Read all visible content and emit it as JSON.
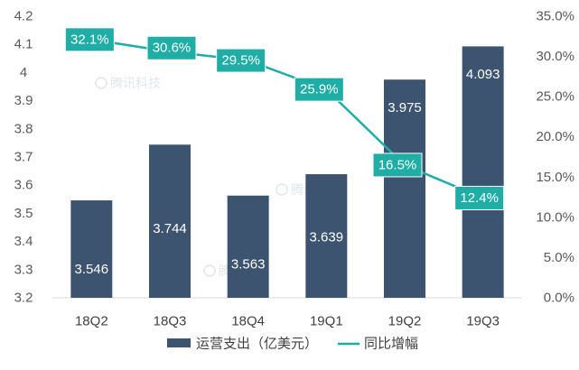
{
  "chart_data": {
    "type": "bar",
    "categories": [
      "18Q2",
      "18Q3",
      "18Q4",
      "19Q1",
      "19Q2",
      "19Q3"
    ],
    "series": [
      {
        "name": "运营支出（亿美元）",
        "type": "bar",
        "axis": "left",
        "values": [
          3.546,
          3.744,
          3.563,
          3.639,
          3.975,
          4.093
        ],
        "labels": [
          "3.546",
          "3.744",
          "3.563",
          "3.639",
          "3.975",
          "4.093"
        ]
      },
      {
        "name": "同比增幅",
        "type": "line",
        "axis": "right",
        "values": [
          32.1,
          30.6,
          29.5,
          25.9,
          16.5,
          12.4
        ],
        "labels": [
          "32.1%",
          "30.6%",
          "29.5%",
          "25.9%",
          "16.5%",
          "12.4%"
        ]
      }
    ],
    "left_axis": {
      "range": [
        3.2,
        4.2
      ],
      "ticks": [
        3.2,
        3.3,
        3.4,
        3.5,
        3.6,
        3.7,
        3.8,
        3.9,
        4.0,
        4.1,
        4.2
      ],
      "tick_labels": [
        "3.2",
        "3.3",
        "3.4",
        "3.5",
        "3.6",
        "3.7",
        "3.8",
        "3.9",
        "4",
        "4.1",
        "4.2"
      ]
    },
    "right_axis": {
      "range": [
        0,
        35
      ],
      "ticks": [
        0,
        5,
        10,
        15,
        20,
        25,
        30,
        35
      ],
      "tick_labels": [
        "0.0%",
        "5.0%",
        "10.0%",
        "15.0%",
        "20.0%",
        "25.0%",
        "30.0%",
        "35.0%"
      ]
    },
    "grid": false,
    "legend_position": "bottom",
    "watermark": "腾讯科技",
    "colors": {
      "bar": "#3d5470",
      "line": "#1fada5",
      "label_box": "#1fada5",
      "axis_text": "#595959"
    }
  }
}
